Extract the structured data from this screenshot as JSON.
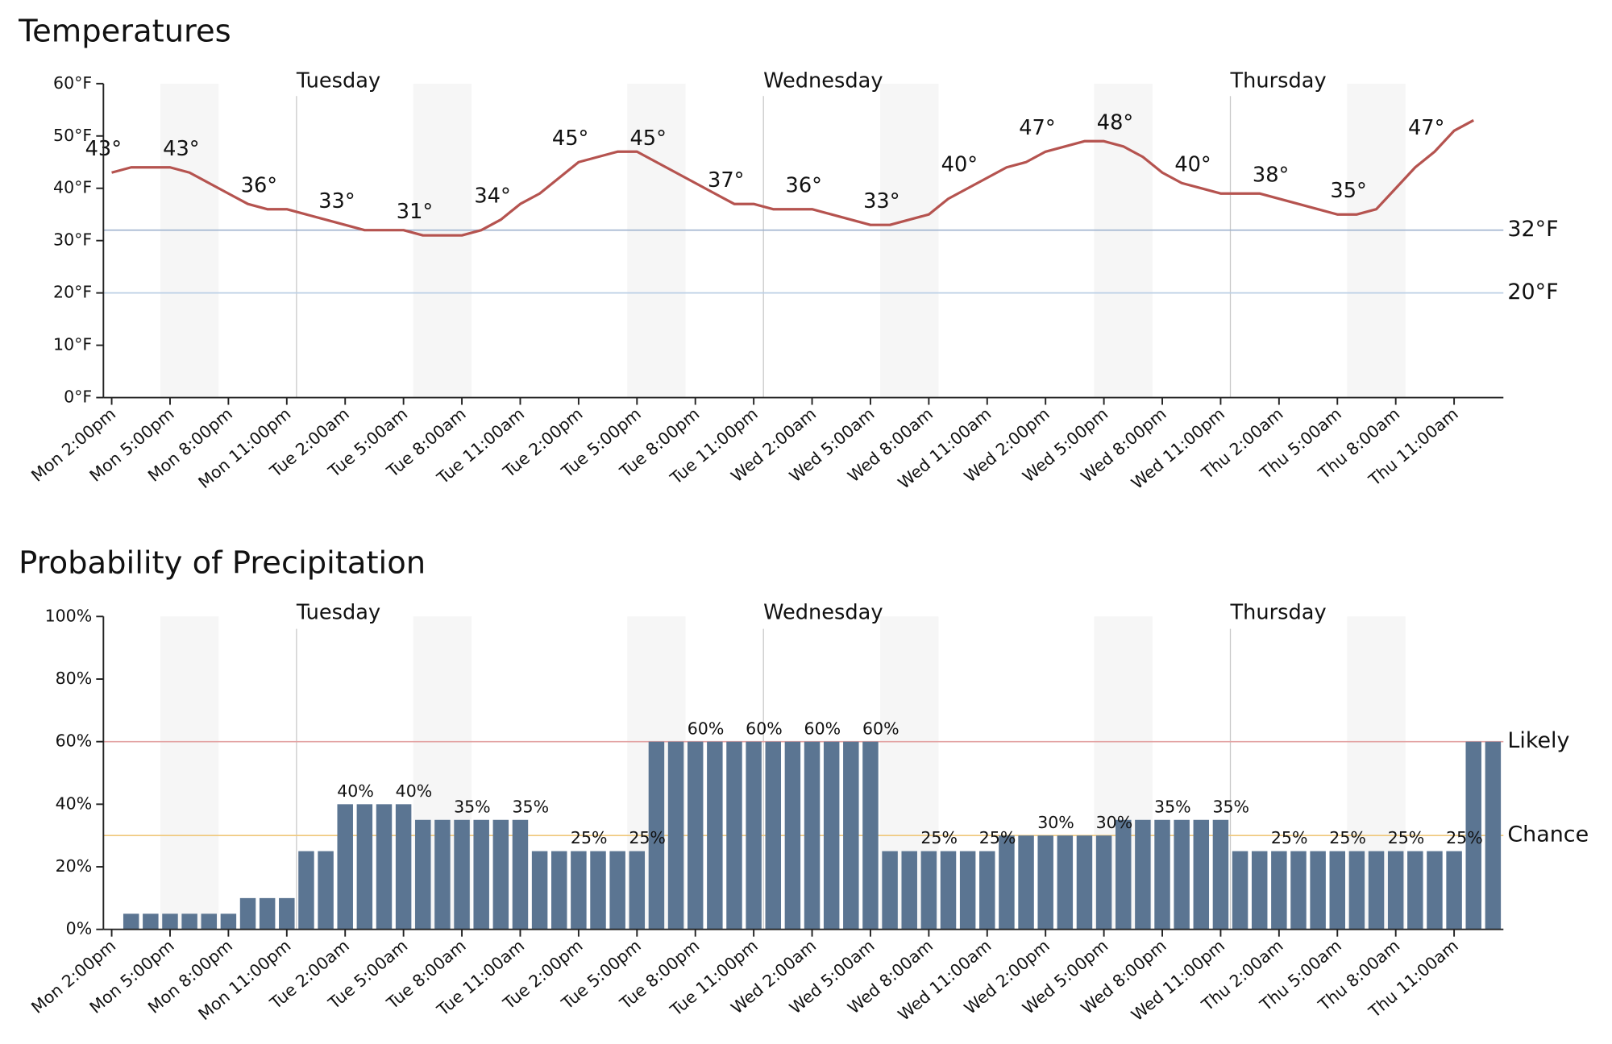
{
  "chart_data": [
    {
      "type": "line",
      "title": "Temperatures",
      "categories": [
        "Mon 2:00pm",
        null,
        null,
        "Mon 5:00pm",
        null,
        null,
        "Mon 8:00pm",
        null,
        null,
        "Mon 11:00pm",
        null,
        null,
        "Tue 2:00am",
        null,
        null,
        "Tue 5:00am",
        null,
        null,
        "Tue 8:00am",
        null,
        null,
        "Tue 11:00am",
        null,
        null,
        "Tue 2:00pm",
        null,
        null,
        "Tue 5:00pm",
        null,
        null,
        "Tue 8:00pm",
        null,
        null,
        "Tue 11:00pm",
        null,
        null,
        "Wed 2:00am",
        null,
        null,
        "Wed 5:00am",
        null,
        null,
        "Wed 8:00am",
        null,
        null,
        "Wed 11:00am",
        null,
        null,
        "Wed 2:00pm",
        null,
        null,
        "Wed 5:00pm",
        null,
        null,
        "Wed 8:00pm",
        null,
        null,
        "Wed 11:00pm",
        null,
        null,
        "Thu 2:00am",
        null,
        null,
        "Thu 5:00am",
        null,
        null,
        "Thu 8:00am",
        null,
        null,
        "Thu 11:00am",
        null,
        null
      ],
      "values": [
        43,
        44,
        44,
        44,
        43,
        41,
        39,
        37,
        36,
        36,
        35,
        34,
        33,
        32,
        32,
        32,
        31,
        31,
        31,
        32,
        34,
        37,
        39,
        42,
        45,
        46,
        47,
        47,
        45,
        43,
        41,
        39,
        37,
        37,
        36,
        36,
        36,
        35,
        34,
        33,
        33,
        34,
        35,
        38,
        40,
        42,
        44,
        45,
        47,
        48,
        49,
        49,
        48,
        46,
        43,
        41,
        40,
        39,
        39,
        39,
        38,
        37,
        36,
        35,
        35,
        36,
        40,
        44,
        47,
        51,
        53,
        null
      ],
      "value_labels": [
        "43°",
        null,
        null,
        null,
        "43°",
        null,
        null,
        null,
        "36°",
        null,
        null,
        null,
        "33°",
        null,
        null,
        null,
        "31°",
        null,
        null,
        null,
        "34°",
        null,
        null,
        null,
        "45°",
        null,
        null,
        null,
        "45°",
        null,
        null,
        null,
        "37°",
        null,
        null,
        null,
        "36°",
        null,
        null,
        null,
        "33°",
        null,
        null,
        null,
        "40°",
        null,
        null,
        null,
        "47°",
        null,
        null,
        null,
        "48°",
        null,
        null,
        null,
        "40°",
        null,
        null,
        null,
        "38°",
        null,
        null,
        null,
        "35°",
        null,
        null,
        null,
        "47°",
        null,
        null,
        null
      ],
      "color": "#b5534f",
      "ylim": [
        0,
        60
      ],
      "yticks": [
        {
          "value": 0,
          "label": "0°F"
        },
        {
          "value": 10,
          "label": "10°F"
        },
        {
          "value": 20,
          "label": "20°F"
        },
        {
          "value": 30,
          "label": "30°F"
        },
        {
          "value": 40,
          "label": "40°F"
        },
        {
          "value": 50,
          "label": "50°F"
        },
        {
          "value": 60,
          "label": "60°F"
        }
      ],
      "reference_lines": [
        {
          "value": 32,
          "label": "32°F",
          "color": "#9fb3cf",
          "label_color": "#34495e"
        },
        {
          "value": 20,
          "label": "20°F",
          "color": "#bcd0e6",
          "label_color": "#34495e"
        }
      ],
      "day_labels": [
        "Tuesday",
        "Wednesday",
        "Thursday"
      ]
    },
    {
      "type": "bar",
      "title": "Probability of Precipitation",
      "categories": [
        "Mon 2:00pm",
        null,
        null,
        "Mon 5:00pm",
        null,
        null,
        "Mon 8:00pm",
        null,
        null,
        "Mon 11:00pm",
        null,
        null,
        "Tue 2:00am",
        null,
        null,
        "Tue 5:00am",
        null,
        null,
        "Tue 8:00am",
        null,
        null,
        "Tue 11:00am",
        null,
        null,
        "Tue 2:00pm",
        null,
        null,
        "Tue 5:00pm",
        null,
        null,
        "Tue 8:00pm",
        null,
        null,
        "Tue 11:00pm",
        null,
        null,
        "Wed 2:00am",
        null,
        null,
        "Wed 5:00am",
        null,
        null,
        "Wed 8:00am",
        null,
        null,
        "Wed 11:00am",
        null,
        null,
        "Wed 2:00pm",
        null,
        null,
        "Wed 5:00pm",
        null,
        null,
        "Wed 8:00pm",
        null,
        null,
        "Wed 11:00pm",
        null,
        null,
        "Thu 2:00am",
        null,
        null,
        "Thu 5:00am",
        null,
        null,
        "Thu 8:00am",
        null,
        null,
        "Thu 11:00am",
        null,
        null
      ],
      "values": [
        0,
        5,
        5,
        5,
        5,
        5,
        5,
        10,
        10,
        10,
        25,
        25,
        40,
        40,
        40,
        40,
        35,
        35,
        35,
        35,
        35,
        35,
        25,
        25,
        25,
        25,
        25,
        25,
        60,
        60,
        60,
        60,
        60,
        60,
        60,
        60,
        60,
        60,
        60,
        60,
        25,
        25,
        25,
        25,
        25,
        25,
        30,
        30,
        30,
        30,
        30,
        30,
        35,
        35,
        35,
        35,
        35,
        35,
        25,
        25,
        25,
        25,
        25,
        25,
        25,
        25,
        25,
        25,
        25,
        25,
        60,
        60
      ],
      "value_labels": [
        null,
        null,
        null,
        null,
        null,
        null,
        null,
        null,
        null,
        null,
        null,
        null,
        "40%",
        null,
        null,
        "40%",
        null,
        null,
        "35%",
        null,
        null,
        "35%",
        null,
        null,
        "25%",
        null,
        null,
        "25%",
        null,
        null,
        "60%",
        null,
        null,
        "60%",
        null,
        null,
        "60%",
        null,
        null,
        "60%",
        null,
        null,
        "25%",
        null,
        null,
        "25%",
        null,
        null,
        "30%",
        null,
        null,
        "30%",
        null,
        null,
        "35%",
        null,
        null,
        "35%",
        null,
        null,
        "25%",
        null,
        null,
        "25%",
        null,
        null,
        "25%",
        null,
        null,
        "25%",
        null,
        null
      ],
      "color": "#5b7592",
      "ylim": [
        0,
        100
      ],
      "yticks": [
        {
          "value": 0,
          "label": "0%"
        },
        {
          "value": 20,
          "label": "20%"
        },
        {
          "value": 40,
          "label": "40%"
        },
        {
          "value": 60,
          "label": "60%"
        },
        {
          "value": 80,
          "label": "80%"
        },
        {
          "value": 100,
          "label": "100%"
        }
      ],
      "reference_lines": [
        {
          "value": 60,
          "label": "Likely",
          "color": "#e3a3a3",
          "label_color": "#3a1010"
        },
        {
          "value": 30,
          "label": "Chance",
          "color": "#efc77a",
          "label_color": "#3a2a00"
        }
      ],
      "day_labels": [
        "Tuesday",
        "Wednesday",
        "Thursday"
      ]
    }
  ]
}
